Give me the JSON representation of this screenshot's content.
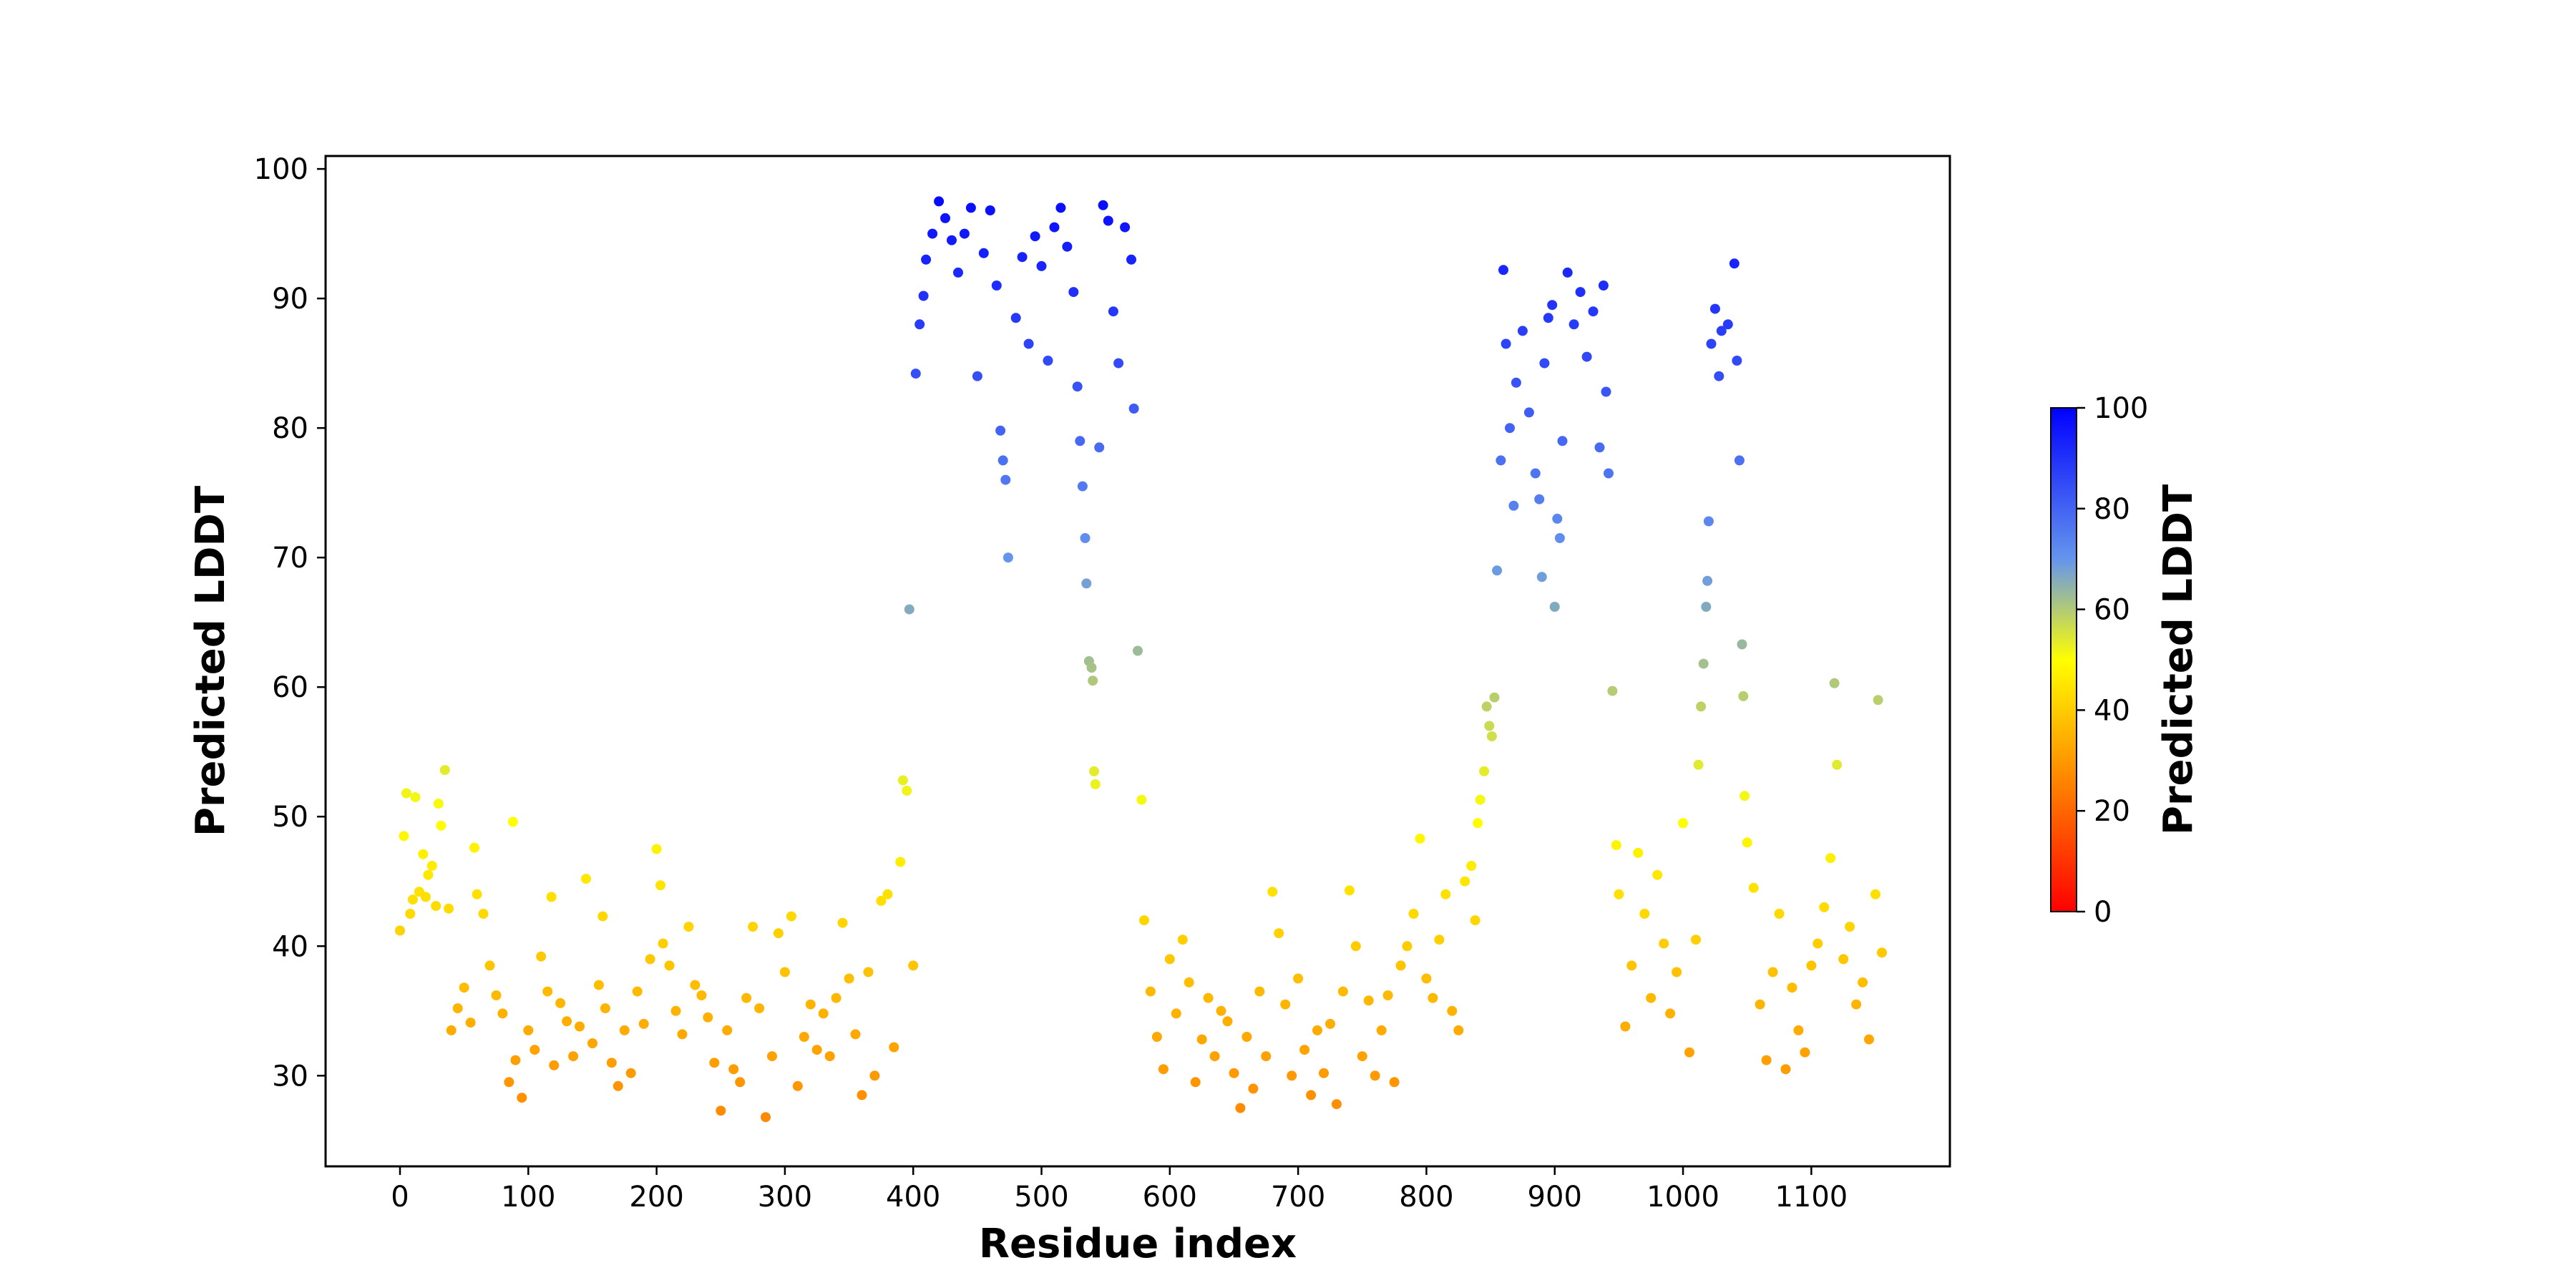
{
  "chart_data": {
    "type": "scatter",
    "title": "",
    "xlabel": "Residue index",
    "ylabel": "Predicted LDDT",
    "xlim": [
      -58,
      1208
    ],
    "ylim": [
      23,
      101
    ],
    "xticks": [
      0,
      100,
      200,
      300,
      400,
      500,
      600,
      700,
      800,
      900,
      1000,
      1100
    ],
    "xtick_labels": [
      "0",
      "100",
      "200",
      "300",
      "400",
      "500",
      "600",
      "700",
      "800",
      "900",
      "1000",
      "1100"
    ],
    "yticks": [
      30,
      40,
      50,
      60,
      70,
      80,
      90,
      100
    ],
    "ytick_labels": [
      "30",
      "40",
      "50",
      "60",
      "70",
      "80",
      "90",
      "100"
    ],
    "grid": false,
    "colormap": {
      "label": "Predicted LDDT",
      "range": [
        0,
        100
      ],
      "ticks": [
        0,
        20,
        40,
        60,
        80,
        100
      ],
      "tick_labels": [
        "0",
        "20",
        "40",
        "60",
        "80",
        "100"
      ],
      "stops": [
        {
          "value": 0,
          "color": "#ff0000"
        },
        {
          "value": 50,
          "color": "#ffff00"
        },
        {
          "value": 70,
          "color": "#6495ed"
        },
        {
          "value": 100,
          "color": "#0000ff"
        }
      ]
    },
    "points": [
      [
        0,
        41.2
      ],
      [
        3,
        48.5
      ],
      [
        5,
        51.8
      ],
      [
        8,
        42.5
      ],
      [
        10,
        43.6
      ],
      [
        12,
        51.5
      ],
      [
        15,
        44.2
      ],
      [
        18,
        47.1
      ],
      [
        20,
        43.8
      ],
      [
        22,
        45.5
      ],
      [
        25,
        46.2
      ],
      [
        28,
        43.1
      ],
      [
        30,
        51.0
      ],
      [
        32,
        49.3
      ],
      [
        35,
        53.6
      ],
      [
        38,
        42.9
      ],
      [
        40,
        33.5
      ],
      [
        45,
        35.2
      ],
      [
        50,
        36.8
      ],
      [
        55,
        34.1
      ],
      [
        58,
        47.6
      ],
      [
        60,
        44.0
      ],
      [
        65,
        42.5
      ],
      [
        70,
        38.5
      ],
      [
        75,
        36.2
      ],
      [
        80,
        34.8
      ],
      [
        85,
        29.5
      ],
      [
        88,
        49.6
      ],
      [
        90,
        31.2
      ],
      [
        95,
        28.3
      ],
      [
        100,
        33.5
      ],
      [
        105,
        32.0
      ],
      [
        110,
        39.2
      ],
      [
        115,
        36.5
      ],
      [
        118,
        43.8
      ],
      [
        120,
        30.8
      ],
      [
        125,
        35.6
      ],
      [
        130,
        34.2
      ],
      [
        135,
        31.5
      ],
      [
        140,
        33.8
      ],
      [
        145,
        45.2
      ],
      [
        150,
        32.5
      ],
      [
        155,
        37.0
      ],
      [
        158,
        42.3
      ],
      [
        160,
        35.2
      ],
      [
        165,
        31.0
      ],
      [
        170,
        29.2
      ],
      [
        175,
        33.5
      ],
      [
        180,
        30.2
      ],
      [
        185,
        36.5
      ],
      [
        190,
        34.0
      ],
      [
        195,
        39.0
      ],
      [
        200,
        47.5
      ],
      [
        203,
        44.7
      ],
      [
        205,
        40.2
      ],
      [
        210,
        38.5
      ],
      [
        215,
        35.0
      ],
      [
        220,
        33.2
      ],
      [
        225,
        41.5
      ],
      [
        230,
        37.0
      ],
      [
        235,
        36.2
      ],
      [
        240,
        34.5
      ],
      [
        245,
        31.0
      ],
      [
        250,
        27.3
      ],
      [
        255,
        33.5
      ],
      [
        260,
        30.5
      ],
      [
        265,
        29.5
      ],
      [
        270,
        36.0
      ],
      [
        275,
        41.5
      ],
      [
        280,
        35.2
      ],
      [
        285,
        26.8
      ],
      [
        290,
        31.5
      ],
      [
        295,
        41.0
      ],
      [
        300,
        38.0
      ],
      [
        305,
        42.3
      ],
      [
        310,
        29.2
      ],
      [
        315,
        33.0
      ],
      [
        320,
        35.5
      ],
      [
        325,
        32.0
      ],
      [
        330,
        34.8
      ],
      [
        335,
        31.5
      ],
      [
        340,
        36.0
      ],
      [
        345,
        41.8
      ],
      [
        350,
        37.5
      ],
      [
        355,
        33.2
      ],
      [
        360,
        28.5
      ],
      [
        365,
        38.0
      ],
      [
        370,
        30.0
      ],
      [
        375,
        43.5
      ],
      [
        380,
        44.0
      ],
      [
        385,
        32.2
      ],
      [
        390,
        46.5
      ],
      [
        392,
        52.8
      ],
      [
        395,
        52.0
      ],
      [
        397,
        66.0
      ],
      [
        400,
        38.5
      ],
      [
        402,
        84.2
      ],
      [
        405,
        88.0
      ],
      [
        408,
        90.2
      ],
      [
        410,
        93.0
      ],
      [
        415,
        95.0
      ],
      [
        420,
        97.5
      ],
      [
        425,
        96.2
      ],
      [
        430,
        94.5
      ],
      [
        435,
        92.0
      ],
      [
        440,
        95.0
      ],
      [
        445,
        97.0
      ],
      [
        450,
        84.0
      ],
      [
        455,
        93.5
      ],
      [
        460,
        96.8
      ],
      [
        465,
        91.0
      ],
      [
        468,
        79.8
      ],
      [
        470,
        77.5
      ],
      [
        472,
        76.0
      ],
      [
        474,
        70.0
      ],
      [
        480,
        88.5
      ],
      [
        485,
        93.2
      ],
      [
        490,
        86.5
      ],
      [
        495,
        94.8
      ],
      [
        500,
        92.5
      ],
      [
        505,
        85.2
      ],
      [
        510,
        95.5
      ],
      [
        515,
        97.0
      ],
      [
        520,
        94.0
      ],
      [
        525,
        90.5
      ],
      [
        528,
        83.2
      ],
      [
        530,
        79.0
      ],
      [
        532,
        75.5
      ],
      [
        534,
        71.5
      ],
      [
        535,
        68.0
      ],
      [
        537,
        62.0
      ],
      [
        539,
        61.5
      ],
      [
        540,
        60.5
      ],
      [
        541,
        53.5
      ],
      [
        542,
        52.5
      ],
      [
        545,
        78.5
      ],
      [
        548,
        97.2
      ],
      [
        552,
        96.0
      ],
      [
        556,
        89.0
      ],
      [
        560,
        85.0
      ],
      [
        565,
        95.5
      ],
      [
        570,
        93.0
      ],
      [
        572,
        81.5
      ],
      [
        575,
        62.8
      ],
      [
        578,
        51.3
      ],
      [
        580,
        42.0
      ],
      [
        585,
        36.5
      ],
      [
        590,
        33.0
      ],
      [
        595,
        30.5
      ],
      [
        600,
        39.0
      ],
      [
        605,
        34.8
      ],
      [
        610,
        40.5
      ],
      [
        615,
        37.2
      ],
      [
        620,
        29.5
      ],
      [
        625,
        32.8
      ],
      [
        630,
        36.0
      ],
      [
        635,
        31.5
      ],
      [
        640,
        35.0
      ],
      [
        645,
        34.2
      ],
      [
        650,
        30.2
      ],
      [
        655,
        27.5
      ],
      [
        660,
        33.0
      ],
      [
        665,
        29.0
      ],
      [
        670,
        36.5
      ],
      [
        675,
        31.5
      ],
      [
        680,
        44.2
      ],
      [
        685,
        41.0
      ],
      [
        690,
        35.5
      ],
      [
        695,
        30.0
      ],
      [
        700,
        37.5
      ],
      [
        705,
        32.0
      ],
      [
        710,
        28.5
      ],
      [
        715,
        33.5
      ],
      [
        720,
        30.2
      ],
      [
        725,
        34.0
      ],
      [
        730,
        27.8
      ],
      [
        735,
        36.5
      ],
      [
        740,
        44.3
      ],
      [
        745,
        40.0
      ],
      [
        750,
        31.5
      ],
      [
        755,
        35.8
      ],
      [
        760,
        30.0
      ],
      [
        765,
        33.5
      ],
      [
        770,
        36.2
      ],
      [
        775,
        29.5
      ],
      [
        780,
        38.5
      ],
      [
        785,
        40.0
      ],
      [
        790,
        42.5
      ],
      [
        795,
        48.3
      ],
      [
        800,
        37.5
      ],
      [
        805,
        36.0
      ],
      [
        810,
        40.5
      ],
      [
        815,
        44.0
      ],
      [
        820,
        35.0
      ],
      [
        825,
        33.5
      ],
      [
        830,
        45.0
      ],
      [
        835,
        46.2
      ],
      [
        838,
        42.0
      ],
      [
        840,
        49.5
      ],
      [
        842,
        51.3
      ],
      [
        845,
        53.5
      ],
      [
        847,
        58.5
      ],
      [
        849,
        57.0
      ],
      [
        851,
        56.2
      ],
      [
        853,
        59.2
      ],
      [
        855,
        69.0
      ],
      [
        858,
        77.5
      ],
      [
        860,
        92.2
      ],
      [
        862,
        86.5
      ],
      [
        865,
        80.0
      ],
      [
        868,
        74.0
      ],
      [
        870,
        83.5
      ],
      [
        875,
        87.5
      ],
      [
        880,
        81.2
      ],
      [
        885,
        76.5
      ],
      [
        888,
        74.5
      ],
      [
        890,
        68.5
      ],
      [
        892,
        85.0
      ],
      [
        895,
        88.5
      ],
      [
        898,
        89.5
      ],
      [
        900,
        66.2
      ],
      [
        902,
        73.0
      ],
      [
        904,
        71.5
      ],
      [
        906,
        79.0
      ],
      [
        910,
        92.0
      ],
      [
        915,
        88.0
      ],
      [
        920,
        90.5
      ],
      [
        925,
        85.5
      ],
      [
        930,
        89.0
      ],
      [
        935,
        78.5
      ],
      [
        938,
        91.0
      ],
      [
        940,
        82.8
      ],
      [
        942,
        76.5
      ],
      [
        945,
        59.7
      ],
      [
        948,
        47.8
      ],
      [
        950,
        44.0
      ],
      [
        955,
        33.8
      ],
      [
        960,
        38.5
      ],
      [
        965,
        47.2
      ],
      [
        970,
        42.5
      ],
      [
        975,
        36.0
      ],
      [
        980,
        45.5
      ],
      [
        985,
        40.2
      ],
      [
        990,
        34.8
      ],
      [
        995,
        38.0
      ],
      [
        1000,
        49.5
      ],
      [
        1005,
        31.8
      ],
      [
        1010,
        40.5
      ],
      [
        1012,
        54.0
      ],
      [
        1014,
        58.5
      ],
      [
        1016,
        61.8
      ],
      [
        1018,
        66.2
      ],
      [
        1019,
        68.2
      ],
      [
        1020,
        72.8
      ],
      [
        1022,
        86.5
      ],
      [
        1025,
        89.2
      ],
      [
        1028,
        84.0
      ],
      [
        1030,
        87.5
      ],
      [
        1035,
        88.0
      ],
      [
        1040,
        92.7
      ],
      [
        1042,
        85.2
      ],
      [
        1044,
        77.5
      ],
      [
        1046,
        63.3
      ],
      [
        1047,
        59.3
      ],
      [
        1048,
        51.6
      ],
      [
        1050,
        48.0
      ],
      [
        1055,
        44.5
      ],
      [
        1060,
        35.5
      ],
      [
        1065,
        31.2
      ],
      [
        1070,
        38.0
      ],
      [
        1075,
        42.5
      ],
      [
        1080,
        30.5
      ],
      [
        1085,
        36.8
      ],
      [
        1090,
        33.5
      ],
      [
        1095,
        31.8
      ],
      [
        1100,
        38.5
      ],
      [
        1105,
        40.2
      ],
      [
        1110,
        43.0
      ],
      [
        1115,
        46.8
      ],
      [
        1118,
        60.3
      ],
      [
        1120,
        54.0
      ],
      [
        1125,
        39.0
      ],
      [
        1130,
        41.5
      ],
      [
        1135,
        35.5
      ],
      [
        1140,
        37.2
      ],
      [
        1145,
        32.8
      ],
      [
        1150,
        44.0
      ],
      [
        1152,
        59.0
      ],
      [
        1155,
        39.5
      ]
    ]
  }
}
